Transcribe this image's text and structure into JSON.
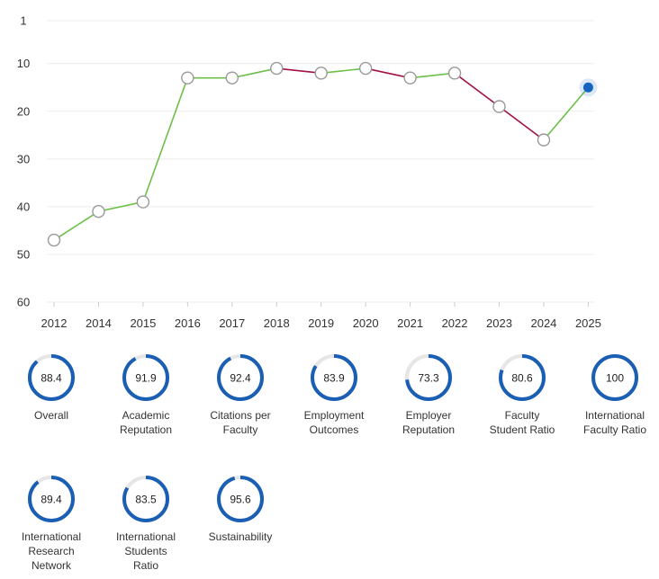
{
  "chart_data": {
    "type": "line",
    "x": [
      "2012",
      "2014",
      "2015",
      "2016",
      "2017",
      "2018",
      "2019",
      "2020",
      "2021",
      "2022",
      "2023",
      "2024",
      "2025"
    ],
    "series": [
      {
        "values": [
          47,
          41,
          39,
          13,
          13,
          11,
          12,
          11,
          13,
          12,
          19,
          26,
          15
        ]
      }
    ],
    "y_ticks": [
      "1",
      "10",
      "20",
      "30",
      "40",
      "50",
      "60"
    ],
    "ylim": [
      1,
      60
    ],
    "y_axis_reversed": true,
    "grid": true,
    "colors": {
      "improving": "#6cc04a",
      "declining": "#a3123f",
      "highlight": "#1565c0",
      "point_fill": "#ffffff",
      "point_stroke": "#999999"
    }
  },
  "metrics": [
    {
      "score": "88.4",
      "label": "Overall",
      "ratio": 0.884
    },
    {
      "score": "91.9",
      "label": "Academic\nReputation",
      "ratio": 0.919
    },
    {
      "score": "92.4",
      "label": "Citations per\nFaculty",
      "ratio": 0.924
    },
    {
      "score": "83.9",
      "label": "Employment\nOutcomes",
      "ratio": 0.839
    },
    {
      "score": "73.3",
      "label": "Employer\nReputation",
      "ratio": 0.733
    },
    {
      "score": "80.6",
      "label": "Faculty\nStudent Ratio",
      "ratio": 0.806
    },
    {
      "score": "100",
      "label": "International\nFaculty Ratio",
      "ratio": 1.0
    },
    {
      "score": "89.4",
      "label": "International\nResearch\nNetwork",
      "ratio": 0.894
    },
    {
      "score": "83.5",
      "label": "International\nStudents\nRatio",
      "ratio": 0.835
    },
    {
      "score": "95.6",
      "label": "Sustainability",
      "ratio": 0.956
    }
  ],
  "ring_colors": {
    "fill": "#1a5fb4",
    "track": "#e6e6e6"
  }
}
